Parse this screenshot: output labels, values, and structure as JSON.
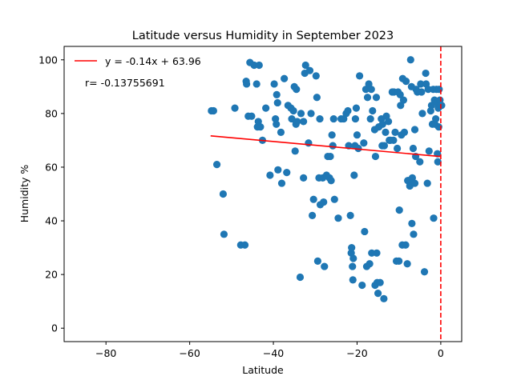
{
  "chart_data": {
    "type": "scatter",
    "title": "Latitude versus Humidity in September 2023",
    "xlabel": "Latitude",
    "ylabel": "Humidity %",
    "xlim": [
      -90,
      5
    ],
    "ylim": [
      -5,
      105
    ],
    "xticks": [
      -80,
      -60,
      -40,
      -20,
      0
    ],
    "yticks": [
      0,
      20,
      40,
      60,
      80,
      100
    ],
    "grid": false,
    "legend_location": "top-left",
    "colors": {
      "points": "#1f77b4",
      "regression": "#ff0000",
      "vline": "#ff0000"
    },
    "regression": {
      "label": "y = -0.14x + 63.96",
      "slope": -0.14,
      "intercept": 63.96,
      "x_range": [
        -55,
        0
      ]
    },
    "r_text": "r= -0.13755691",
    "vline_x": 0,
    "points": [
      [
        -54.8,
        81
      ],
      [
        -54.3,
        81
      ],
      [
        -53.5,
        61
      ],
      [
        -52.0,
        50
      ],
      [
        -51.8,
        35
      ],
      [
        -49.2,
        82
      ],
      [
        -47.8,
        31
      ],
      [
        -46.8,
        31
      ],
      [
        -46.5,
        92
      ],
      [
        -46.4,
        91
      ],
      [
        -46.0,
        79
      ],
      [
        -45.6,
        99
      ],
      [
        -45.2,
        79
      ],
      [
        -44.6,
        98
      ],
      [
        -44.0,
        91
      ],
      [
        -43.8,
        75
      ],
      [
        -43.6,
        77
      ],
      [
        -43.4,
        98
      ],
      [
        -43.1,
        75
      ],
      [
        -42.6,
        70
      ],
      [
        -41.8,
        82
      ],
      [
        -40.8,
        57
      ],
      [
        -39.8,
        91
      ],
      [
        -39.5,
        78
      ],
      [
        -39.3,
        76
      ],
      [
        -39.2,
        87
      ],
      [
        -39.0,
        84
      ],
      [
        -38.9,
        59
      ],
      [
        -38.2,
        73
      ],
      [
        -38.0,
        54
      ],
      [
        -37.4,
        93
      ],
      [
        -36.8,
        58
      ],
      [
        -36.5,
        83
      ],
      [
        -35.8,
        82
      ],
      [
        -35.6,
        78
      ],
      [
        -35.2,
        81
      ],
      [
        -35.0,
        90
      ],
      [
        -34.8,
        66
      ],
      [
        -34.6,
        76
      ],
      [
        -34.5,
        89
      ],
      [
        -34.3,
        77
      ],
      [
        -33.6,
        19
      ],
      [
        -33.4,
        80
      ],
      [
        -32.8,
        56
      ],
      [
        -32.8,
        77
      ],
      [
        -32.5,
        95
      ],
      [
        -32.3,
        98
      ],
      [
        -31.6,
        69
      ],
      [
        -31.3,
        96
      ],
      [
        -31.0,
        80
      ],
      [
        -30.7,
        42
      ],
      [
        -30.4,
        48
      ],
      [
        -29.8,
        94
      ],
      [
        -29.6,
        86
      ],
      [
        -29.4,
        25
      ],
      [
        -29.1,
        56
      ],
      [
        -28.9,
        78
      ],
      [
        -28.8,
        46
      ],
      [
        -28.2,
        56
      ],
      [
        -28.0,
        47
      ],
      [
        -27.8,
        23
      ],
      [
        -27.3,
        57
      ],
      [
        -27.0,
        64
      ],
      [
        -26.6,
        56
      ],
      [
        -26.4,
        64
      ],
      [
        -26.2,
        55
      ],
      [
        -26.0,
        72
      ],
      [
        -25.8,
        68
      ],
      [
        -25.6,
        78
      ],
      [
        -25.4,
        48
      ],
      [
        -24.5,
        41
      ],
      [
        -23.8,
        78
      ],
      [
        -23.2,
        78
      ],
      [
        -22.6,
        80
      ],
      [
        -22.2,
        81
      ],
      [
        -22.0,
        68
      ],
      [
        -21.6,
        42
      ],
      [
        -21.4,
        28
      ],
      [
        -21.3,
        30
      ],
      [
        -21.1,
        23
      ],
      [
        -21.0,
        18
      ],
      [
        -20.9,
        26
      ],
      [
        -20.7,
        57
      ],
      [
        -20.5,
        68
      ],
      [
        -20.4,
        78
      ],
      [
        -20.2,
        82
      ],
      [
        -20.0,
        72
      ],
      [
        -19.7,
        67
      ],
      [
        -19.4,
        94
      ],
      [
        -18.8,
        16
      ],
      [
        -18.4,
        69
      ],
      [
        -18.2,
        36
      ],
      [
        -17.9,
        89
      ],
      [
        -17.7,
        23
      ],
      [
        -17.5,
        86
      ],
      [
        -17.2,
        91
      ],
      [
        -17.0,
        24
      ],
      [
        -16.8,
        78
      ],
      [
        -16.6,
        89
      ],
      [
        -16.5,
        28
      ],
      [
        -16.3,
        81
      ],
      [
        -15.8,
        74
      ],
      [
        -15.7,
        16
      ],
      [
        -15.6,
        64
      ],
      [
        -15.4,
        86
      ],
      [
        -15.3,
        28
      ],
      [
        -15.2,
        17
      ],
      [
        -15.0,
        13
      ],
      [
        -14.8,
        75
      ],
      [
        -14.5,
        17
      ],
      [
        -14.2,
        78
      ],
      [
        -14.0,
        68
      ],
      [
        -13.9,
        76
      ],
      [
        -13.6,
        11
      ],
      [
        -13.5,
        68
      ],
      [
        -13.2,
        73
      ],
      [
        -13.0,
        79
      ],
      [
        -12.5,
        77
      ],
      [
        -12.3,
        70
      ],
      [
        -12.0,
        70
      ],
      [
        -11.6,
        88
      ],
      [
        -11.3,
        70
      ],
      [
        -11.2,
        88
      ],
      [
        -10.9,
        73
      ],
      [
        -10.6,
        25
      ],
      [
        -10.4,
        67
      ],
      [
        -10.2,
        88
      ],
      [
        -10.0,
        25
      ],
      [
        -9.9,
        44
      ],
      [
        -9.7,
        87
      ],
      [
        -9.6,
        83
      ],
      [
        -9.4,
        72
      ],
      [
        -9.2,
        31
      ],
      [
        -9.1,
        93
      ],
      [
        -8.9,
        85
      ],
      [
        -8.7,
        73
      ],
      [
        -8.4,
        31
      ],
      [
        -8.3,
        92
      ],
      [
        -8.0,
        24
      ],
      [
        -7.9,
        55
      ],
      [
        -7.6,
        55
      ],
      [
        -7.4,
        53
      ],
      [
        -7.2,
        100
      ],
      [
        -7.0,
        90
      ],
      [
        -6.9,
        39
      ],
      [
        -6.8,
        56
      ],
      [
        -6.6,
        67
      ],
      [
        -6.5,
        35
      ],
      [
        -6.2,
        74
      ],
      [
        -6.2,
        54
      ],
      [
        -6.0,
        64
      ],
      [
        -5.9,
        89
      ],
      [
        -5.6,
        88
      ],
      [
        -5.0,
        62
      ],
      [
        -4.8,
        91
      ],
      [
        -4.6,
        88
      ],
      [
        -4.4,
        80
      ],
      [
        -3.9,
        21
      ],
      [
        -3.6,
        95
      ],
      [
        -3.5,
        91
      ],
      [
        -3.2,
        54
      ],
      [
        -3.0,
        89
      ],
      [
        -2.8,
        66
      ],
      [
        -2.4,
        81
      ],
      [
        -2.2,
        83
      ],
      [
        -2.0,
        76
      ],
      [
        -1.8,
        89
      ],
      [
        -1.7,
        41
      ],
      [
        -1.5,
        85
      ],
      [
        -1.4,
        76
      ],
      [
        -1.2,
        78
      ],
      [
        -1.0,
        89
      ],
      [
        -0.9,
        84
      ],
      [
        -0.8,
        65
      ],
      [
        -0.7,
        62
      ],
      [
        -0.6,
        82
      ],
      [
        -0.5,
        75
      ],
      [
        -0.4,
        89
      ],
      [
        -0.2,
        85
      ],
      [
        0.2,
        83
      ]
    ]
  }
}
